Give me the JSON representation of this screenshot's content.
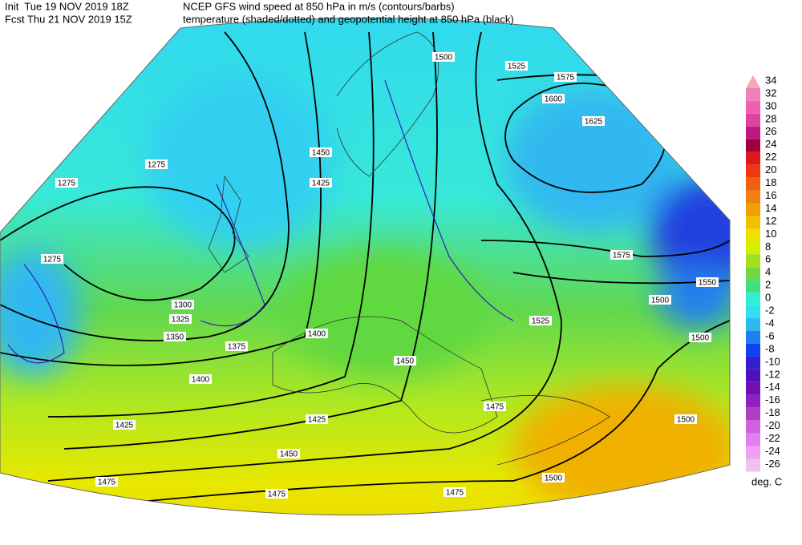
{
  "header": {
    "init": "Init  Tue 19 NOV 2019 18Z",
    "fcst": "Fcst Thu 21 NOV 2019 15Z",
    "title": "NCEP GFS wind speed at 850 hPa in m/s (contours/barbs)",
    "subtitle": "temperature (shaded/dotted) and geopotential height at 850 hPa (black)"
  },
  "colorbar": {
    "unit": "deg. C",
    "levels": [
      {
        "label": "34",
        "color": "#f4a8b8"
      },
      {
        "label": "32",
        "color": "#f080b8"
      },
      {
        "label": "30",
        "color": "#f060b0"
      },
      {
        "label": "28",
        "color": "#e040a0"
      },
      {
        "label": "26",
        "color": "#c01880"
      },
      {
        "label": "24",
        "color": "#a00040"
      },
      {
        "label": "22",
        "color": "#e01818"
      },
      {
        "label": "20",
        "color": "#f03810"
      },
      {
        "label": "18",
        "color": "#f06010"
      },
      {
        "label": "16",
        "color": "#f08010"
      },
      {
        "label": "14",
        "color": "#f0a000"
      },
      {
        "label": "12",
        "color": "#f0c000"
      },
      {
        "label": "10",
        "color": "#f0e000"
      },
      {
        "label": "8",
        "color": "#d0f000"
      },
      {
        "label": "6",
        "color": "#a0e020"
      },
      {
        "label": "4",
        "color": "#70d840"
      },
      {
        "label": "2",
        "color": "#40e080"
      },
      {
        "label": "0",
        "color": "#30f0d0"
      },
      {
        "label": "-2",
        "color": "#30e0f0"
      },
      {
        "label": "-4",
        "color": "#30b8f0"
      },
      {
        "label": "-6",
        "color": "#2080f0"
      },
      {
        "label": "-8",
        "color": "#1040f0"
      },
      {
        "label": "-10",
        "color": "#3020d0"
      },
      {
        "label": "-12",
        "color": "#5010c0"
      },
      {
        "label": "-14",
        "color": "#7010b0"
      },
      {
        "label": "-16",
        "color": "#9020c0"
      },
      {
        "label": "-18",
        "color": "#b040c0"
      },
      {
        "label": "-20",
        "color": "#d060e0"
      },
      {
        "label": "-22",
        "color": "#e080f0"
      },
      {
        "label": "-24",
        "color": "#f0a0f0"
      },
      {
        "label": "-26",
        "color": "#f0c0f0"
      }
    ]
  },
  "height_labels": [
    "1275",
    "1275",
    "1275",
    "1300",
    "1325",
    "1350",
    "1375",
    "1400",
    "1400",
    "1425",
    "1425",
    "1425",
    "1450",
    "1450",
    "1450",
    "1475",
    "1475",
    "1475",
    "1475",
    "1500",
    "1500",
    "1500",
    "1500",
    "1500",
    "1525",
    "1525",
    "1550",
    "1575",
    "1575",
    "1600",
    "1625"
  ]
}
